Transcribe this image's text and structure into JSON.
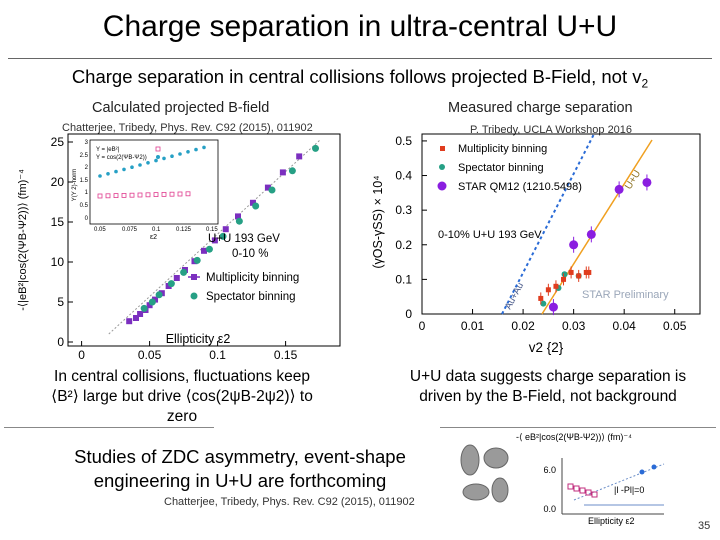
{
  "title": "Charge separation in ultra-central U+U",
  "subtitle": {
    "main": "Charge separation in central collisions follows projected B-Field, not v",
    "sub": "2"
  },
  "left_panel": {
    "caption": "Calculated projected B-field",
    "reference": "Chatterjee, Tribedy, Phys. Rev. C92 (2015), 011902",
    "ylabel": "-⟨|eB²|cos(2(ΨB-Ψ2))⟩ (fm)⁻⁴",
    "xlabel": "Ellipticity ε2",
    "yticks": [
      "0",
      "5",
      "10",
      "15",
      "20",
      "25"
    ],
    "xticks": [
      "0",
      "0.05",
      "0.1",
      "0.15"
    ],
    "annotation1": "U+U 193 GeV",
    "annotation2": "0-10 %",
    "legend": [
      "Multiplicity binning",
      "Spectator binning"
    ],
    "inset": {
      "yticks": [
        "3",
        "2.5",
        "2",
        "1.5",
        "1",
        "0.5",
        "0"
      ],
      "xticks": [
        "0.05",
        "0.075",
        "0.1",
        "0.125",
        "0.15"
      ],
      "xlabel": "ε2",
      "ylabel": "Y(Y 2)-norm",
      "legend": [
        "Y = |eB²|",
        "Y = cos(2(ΨB-Ψ2))"
      ]
    }
  },
  "right_panel": {
    "caption": "Measured charge separation",
    "reference": "P. Tribedy, UCLA Workshop 2016",
    "ylabel": "(γOS-γSS) × 10⁴",
    "xlabel": "v2 {2}",
    "yticks": [
      "0",
      "0.1",
      "0.2",
      "0.3",
      "0.4",
      "0.5"
    ],
    "xticks": [
      "0",
      "0.01",
      "0.02",
      "0.03",
      "0.04",
      "0.05"
    ],
    "legend": [
      "Multiplicity binning",
      "Spectator binning",
      "STAR QM12 (1210.5498)"
    ],
    "annotation": "0-10% U+U 193 GeV",
    "preliminary": "STAR Preliminary",
    "line_label_uu": "U+U",
    "line_label_auau": "Au+Au"
  },
  "text_left": [
    "In central collisions, fluctuations keep",
    "⟨B²⟩ large but drive ⟨cos(2ψB-2ψ2)⟩ to",
    "zero"
  ],
  "text_right": [
    "U+U data suggests charge separation is",
    "driven by the B-Field, not background"
  ],
  "outlook": [
    "Studies of ZDC asymmetry, event-shape",
    "engineering in U+U are forthcoming"
  ],
  "outlook_reference": "Chatterjee, Tribedy, Phys. Rev. C92 (2015), 011902",
  "thumb": {
    "ylabel": "-⟨ eB²|cos(2(ΨB-Ψ2))⟩ (fm)⁻⁴",
    "ytick1": "6.0",
    "ytick2": "0.0",
    "note": "|l -Pl|=0",
    "xlabel": "Ellipticity ε2"
  },
  "slide_number": "35",
  "colors": {
    "multiplicity": "#7b2fbf",
    "spectator": "#26a085",
    "star_red": "#e03c1e",
    "star_qm12": "#8a1ee0",
    "uu_line": "#f0a020",
    "auau_line": "#2a6bd6"
  },
  "chart_data": [
    {
      "type": "scatter",
      "title": "Calculated projected B-field",
      "xlabel": "Ellipticity ε2",
      "ylabel": "-⟨|eB²|cos(2(ΨB-Ψ2))⟩ (fm)⁻⁴",
      "xlim": [
        -0.01,
        0.19
      ],
      "ylim": [
        -0.5,
        26
      ],
      "legend_position": "bottom-right",
      "series": [
        {
          "name": "Multiplicity binning",
          "x": [
            0.16,
            0.148,
            0.137,
            0.126,
            0.115,
            0.106,
            0.098,
            0.09,
            0.083,
            0.076,
            0.07,
            0.064,
            0.059,
            0.054,
            0.05,
            0.047,
            0.043,
            0.04,
            0.035
          ],
          "y": [
            23.2,
            21.2,
            19.3,
            17.4,
            15.7,
            14.1,
            12.7,
            11.4,
            10.1,
            9.0,
            8.0,
            7.0,
            6.1,
            5.3,
            4.6,
            4.0,
            3.5,
            3.0,
            2.6
          ]
        },
        {
          "name": "Spectator binning",
          "x": [
            0.172,
            0.155,
            0.14,
            0.128,
            0.116,
            0.104,
            0.094,
            0.085,
            0.075,
            0.066,
            0.057,
            0.052,
            0.046
          ],
          "y": [
            24.2,
            21.4,
            19.0,
            17.0,
            15.1,
            13.2,
            11.6,
            10.2,
            8.7,
            7.3,
            5.9,
            5.0,
            4.2
          ]
        }
      ]
    },
    {
      "type": "scatter",
      "title": "Measured charge separation",
      "xlabel": "v2 {2}",
      "ylabel": "(γOS-γSS) × 10⁴",
      "xlim": [
        0,
        0.055
      ],
      "ylim": [
        0,
        0.52
      ],
      "legend_position": "top-left",
      "series": [
        {
          "name": "Multiplicity binning",
          "x": [
            0.0235,
            0.025,
            0.0265,
            0.028,
            0.0295,
            0.031,
            0.0325,
            0.033
          ],
          "y": [
            0.045,
            0.07,
            0.08,
            0.1,
            0.12,
            0.11,
            0.12,
            0.12
          ]
        },
        {
          "name": "Spectator binning",
          "x": [
            0.024,
            0.027,
            0.0282,
            0.031
          ],
          "y": [
            0.03,
            0.075,
            0.115,
            0.11
          ]
        },
        {
          "name": "STAR QM12 (1210.5498)",
          "x": [
            0.026,
            0.03,
            0.0335,
            0.039,
            0.0445
          ],
          "y": [
            0.02,
            0.2,
            0.23,
            0.36,
            0.38
          ]
        }
      ]
    }
  ]
}
